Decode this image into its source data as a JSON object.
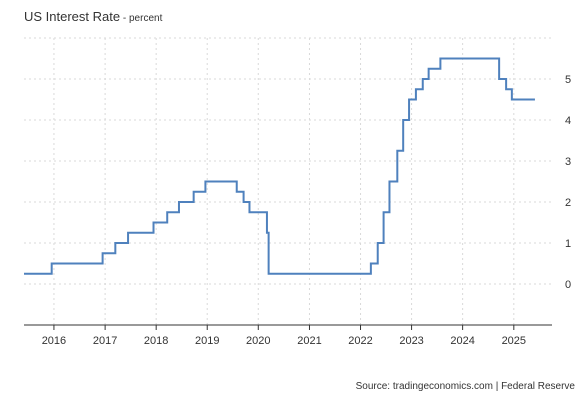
{
  "header": {
    "title": "US Interest Rate",
    "unit_prefix": " - ",
    "unit": "percent"
  },
  "source": "Source: tradingeconomics.com | Federal Reserve",
  "colors": {
    "line": "#4f81bd",
    "grid": "#d9d9d9",
    "axis": "#333333",
    "text": "#333333"
  },
  "chart_data": {
    "type": "line",
    "title": "US Interest Rate",
    "subtitle": "percent",
    "xlabel": "",
    "ylabel": "",
    "x_ticks": [
      "2016",
      "2017",
      "2018",
      "2019",
      "2020",
      "2021",
      "2022",
      "2023",
      "2024",
      "2025"
    ],
    "y_ticks": [
      "0",
      "1",
      "2",
      "3",
      "4",
      "5"
    ],
    "xlim": [
      "2015-06-01",
      "2025-10-01"
    ],
    "ylim": [
      -1,
      6
    ],
    "y_axis_side": "right",
    "grid": true,
    "step": true,
    "series": [
      {
        "points": [
          [
            "2015-06-01",
            0.25
          ],
          [
            "2015-12-16",
            0.5
          ],
          [
            "2016-12-14",
            0.75
          ],
          [
            "2017-03-15",
            1.0
          ],
          [
            "2017-06-14",
            1.25
          ],
          [
            "2017-12-13",
            1.5
          ],
          [
            "2018-03-21",
            1.75
          ],
          [
            "2018-06-13",
            2.0
          ],
          [
            "2018-09-26",
            2.25
          ],
          [
            "2018-12-19",
            2.5
          ],
          [
            "2019-07-31",
            2.25
          ],
          [
            "2019-09-18",
            2.0
          ],
          [
            "2019-10-30",
            1.75
          ],
          [
            "2020-03-03",
            1.25
          ],
          [
            "2020-03-15",
            0.25
          ],
          [
            "2022-03-16",
            0.5
          ],
          [
            "2022-05-04",
            1.0
          ],
          [
            "2022-06-15",
            1.75
          ],
          [
            "2022-07-27",
            2.5
          ],
          [
            "2022-09-21",
            3.25
          ],
          [
            "2022-11-02",
            4.0
          ],
          [
            "2022-12-14",
            4.5
          ],
          [
            "2023-02-01",
            4.75
          ],
          [
            "2023-03-22",
            5.0
          ],
          [
            "2023-05-03",
            5.25
          ],
          [
            "2023-07-26",
            5.5
          ],
          [
            "2024-09-18",
            5.0
          ],
          [
            "2024-11-07",
            4.75
          ],
          [
            "2024-12-18",
            4.5
          ],
          [
            "2025-06-01",
            4.5
          ]
        ]
      }
    ]
  }
}
